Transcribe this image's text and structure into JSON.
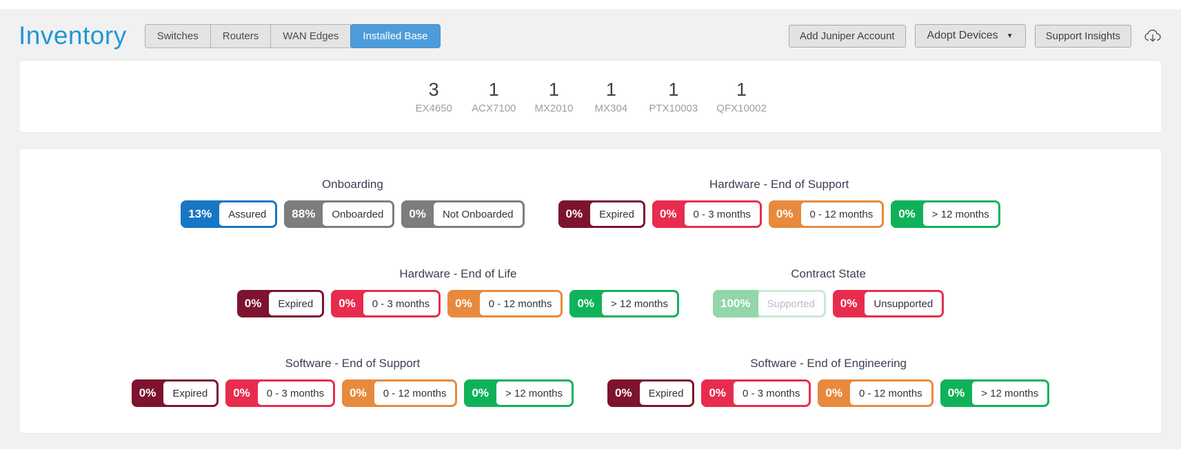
{
  "page": {
    "title": "Inventory"
  },
  "tabs": [
    {
      "label": "Switches",
      "active": false
    },
    {
      "label": "Routers",
      "active": false
    },
    {
      "label": "WAN Edges",
      "active": false
    },
    {
      "label": "Installed Base",
      "active": true
    }
  ],
  "actions": {
    "add_account_label": "Add Juniper Account",
    "adopt_devices_label": "Adopt Devices",
    "support_insights_label": "Support Insights",
    "adopt_caret_icon": "caret-down-icon",
    "cloud_icon": "cloud-download-icon"
  },
  "colors": {
    "accent_blue": "#2196d3",
    "tab_active": "#4e9cd9",
    "assured_blue": "#1777c4",
    "neutral_gray": "#7d7d7d",
    "expired_maroon": "#7d132f",
    "warn_crimson": "#e82c4e",
    "warn_orange": "#e78a3d",
    "ok_green": "#10b259",
    "supported_pale_green": "#92d6aa"
  },
  "device_counts": [
    {
      "count": "3",
      "model": "EX4650"
    },
    {
      "count": "1",
      "model": "ACX7100"
    },
    {
      "count": "1",
      "model": "MX2010"
    },
    {
      "count": "1",
      "model": "MX304"
    },
    {
      "count": "1",
      "model": "PTX10003"
    },
    {
      "count": "1",
      "model": "QFX10002"
    }
  ],
  "status_rows": [
    [
      {
        "title": "Onboarding",
        "badges": [
          {
            "pct": "13%",
            "label": "Assured",
            "color": "#1777c4"
          },
          {
            "pct": "88%",
            "label": "Onboarded",
            "color": "#7d7d7d"
          },
          {
            "pct": "0%",
            "label": "Not Onboarded",
            "color": "#7d7d7d"
          }
        ]
      },
      {
        "title": "Hardware - End of Support",
        "badges": [
          {
            "pct": "0%",
            "label": "Expired",
            "color": "#7d132f"
          },
          {
            "pct": "0%",
            "label": "0 - 3 months",
            "color": "#e82c4e"
          },
          {
            "pct": "0%",
            "label": "0 - 12 months",
            "color": "#e78a3d"
          },
          {
            "pct": "0%",
            "label": "> 12 months",
            "color": "#10b259"
          }
        ]
      }
    ],
    [
      {
        "title": "Hardware - End of Life",
        "badges": [
          {
            "pct": "0%",
            "label": "Expired",
            "color": "#7d132f"
          },
          {
            "pct": "0%",
            "label": "0 - 3 months",
            "color": "#e82c4e"
          },
          {
            "pct": "0%",
            "label": "0 - 12 months",
            "color": "#e78a3d"
          },
          {
            "pct": "0%",
            "label": "> 12 months",
            "color": "#10b259"
          }
        ]
      },
      {
        "title": "Contract State",
        "badges": [
          {
            "pct": "100%",
            "label": "Supported",
            "color": "#92d6aa",
            "border": "#c7ead4",
            "label_color": "#b9bec4"
          },
          {
            "pct": "0%",
            "label": "Unsupported",
            "color": "#e82c4e"
          }
        ]
      }
    ],
    [
      {
        "title": "Software - End of Support",
        "badges": [
          {
            "pct": "0%",
            "label": "Expired",
            "color": "#7d132f"
          },
          {
            "pct": "0%",
            "label": "0 - 3 months",
            "color": "#e82c4e"
          },
          {
            "pct": "0%",
            "label": "0 - 12 months",
            "color": "#e78a3d"
          },
          {
            "pct": "0%",
            "label": "> 12 months",
            "color": "#10b259"
          }
        ]
      },
      {
        "title": "Software - End of Engineering",
        "badges": [
          {
            "pct": "0%",
            "label": "Expired",
            "color": "#7d132f"
          },
          {
            "pct": "0%",
            "label": "0 - 3 months",
            "color": "#e82c4e"
          },
          {
            "pct": "0%",
            "label": "0 - 12 months",
            "color": "#e78a3d"
          },
          {
            "pct": "0%",
            "label": "> 12 months",
            "color": "#10b259"
          }
        ]
      }
    ]
  ]
}
